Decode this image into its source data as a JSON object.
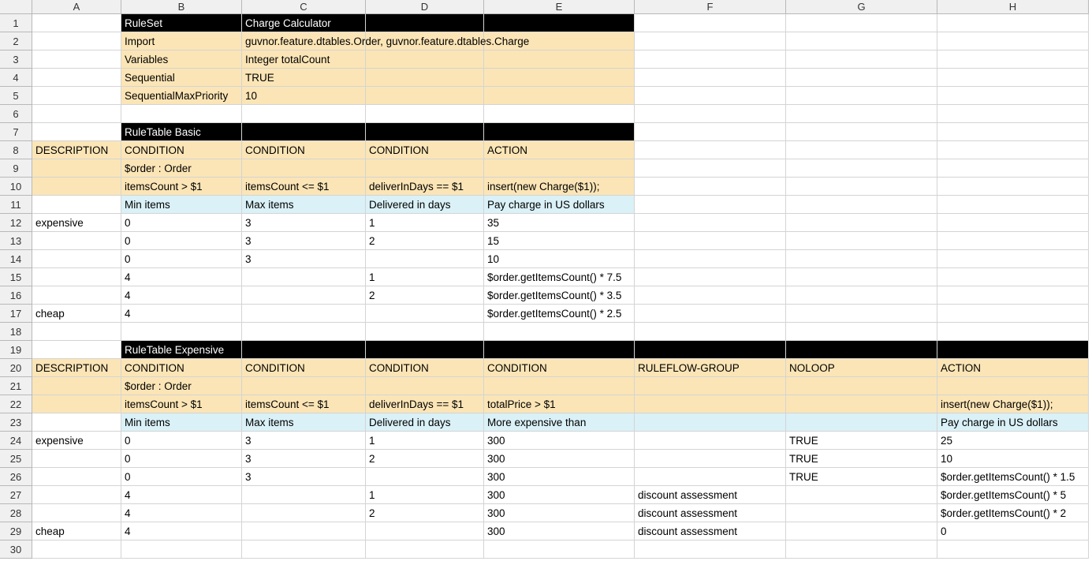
{
  "columns": [
    "A",
    "B",
    "C",
    "D",
    "E",
    "F",
    "G",
    "H"
  ],
  "row_numbers": [
    1,
    2,
    3,
    4,
    5,
    6,
    7,
    8,
    9,
    10,
    11,
    12,
    13,
    14,
    15,
    16,
    17,
    18,
    19,
    20,
    21,
    22,
    23,
    24,
    25,
    26,
    27,
    28,
    29,
    30
  ],
  "rows": [
    {
      "B": "RuleSet",
      "C": "Charge Calculator"
    },
    {
      "B": "Import",
      "C": "guvnor.feature.dtables.Order, guvnor.feature.dtables.Charge"
    },
    {
      "B": "Variables",
      "C": "Integer totalCount"
    },
    {
      "B": "Sequential",
      "C": "TRUE"
    },
    {
      "B": "SequentialMaxPriority",
      "C": "10"
    },
    {},
    {
      "B": "RuleTable Basic"
    },
    {
      "A": "DESCRIPTION",
      "B": "CONDITION",
      "C": "CONDITION",
      "D": "CONDITION",
      "E": "ACTION"
    },
    {
      "B": "$order : Order"
    },
    {
      "B": "itemsCount > $1",
      "C": "itemsCount <= $1",
      "D": "deliverInDays == $1",
      "E": "insert(new Charge($1));"
    },
    {
      "B": "Min items",
      "C": "Max items",
      "D": "Delivered in days",
      "E": "Pay charge in US dollars"
    },
    {
      "A": "expensive",
      "B": "0",
      "C": "3",
      "D": "1",
      "E": "35"
    },
    {
      "B": "0",
      "C": "3",
      "D": "2",
      "E": "15"
    },
    {
      "B": "0",
      "C": "3",
      "E": "10"
    },
    {
      "B": "4",
      "D": "1",
      "E": "$order.getItemsCount() * 7.5"
    },
    {
      "B": "4",
      "D": "2",
      "E": "$order.getItemsCount() * 3.5"
    },
    {
      "A": "cheap",
      "B": "4",
      "E": "$order.getItemsCount() * 2.5"
    },
    {},
    {
      "B": "RuleTable Expensive"
    },
    {
      "A": "DESCRIPTION",
      "B": "CONDITION",
      "C": "CONDITION",
      "D": "CONDITION",
      "E": "CONDITION",
      "F": "RULEFLOW-GROUP",
      "G": "NOLOOP",
      "H": "ACTION"
    },
    {
      "B": "$order : Order"
    },
    {
      "B": "itemsCount > $1",
      "C": "itemsCount <= $1",
      "D": "deliverInDays == $1",
      "E": "totalPrice > $1",
      "H": "insert(new Charge($1));"
    },
    {
      "B": "Min items",
      "C": "Max items",
      "D": "Delivered in days",
      "E": "More expensive than",
      "H": "Pay charge in US dollars"
    },
    {
      "A": "expensive",
      "B": "0",
      "C": "3",
      "D": "1",
      "E": "300",
      "G": "TRUE",
      "H": "25"
    },
    {
      "B": "0",
      "C": "3",
      "D": "2",
      "E": "300",
      "G": "TRUE",
      "H": "10"
    },
    {
      "B": "0",
      "C": "3",
      "E": "300",
      "G": "TRUE",
      "H": "$order.getItemsCount() * 1.5"
    },
    {
      "B": "4",
      "D": "1",
      "E": "300",
      "F": "discount assessment",
      "H": "$order.getItemsCount() * 5"
    },
    {
      "B": "4",
      "D": "2",
      "E": "300",
      "F": "discount assessment",
      "H": "$order.getItemsCount() * 2"
    },
    {
      "A": "cheap",
      "B": "4",
      "E": "300",
      "F": "discount assessment",
      "H": "0"
    },
    {}
  ]
}
